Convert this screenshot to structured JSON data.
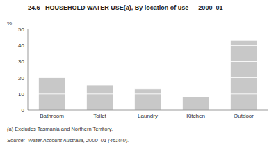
{
  "chart_data": {
    "type": "bar",
    "stacked": true,
    "title": "24.6   HOUSEHOLD WATER USE(a), By location of use — 2000–01",
    "ylabel": "%",
    "categories": [
      "Bathroom",
      "Toilet",
      "Laundry",
      "Kitchen",
      "Outdoor"
    ],
    "values": [
      [
        10,
        10
      ],
      [
        10,
        5.5
      ],
      [
        10,
        3
      ],
      [
        8
      ],
      [
        10,
        10,
        10,
        10,
        3
      ]
    ],
    "color": "#c8c8c8",
    "ylim": [
      0,
      50
    ],
    "yticks": [
      0,
      10,
      20,
      30,
      40,
      50
    ],
    "grid": false,
    "annotations": [
      "(a) Excludes Tasmania and Northern Territory.",
      "Source:  Water Account Australia, 2000–01 (4610.0)."
    ]
  }
}
